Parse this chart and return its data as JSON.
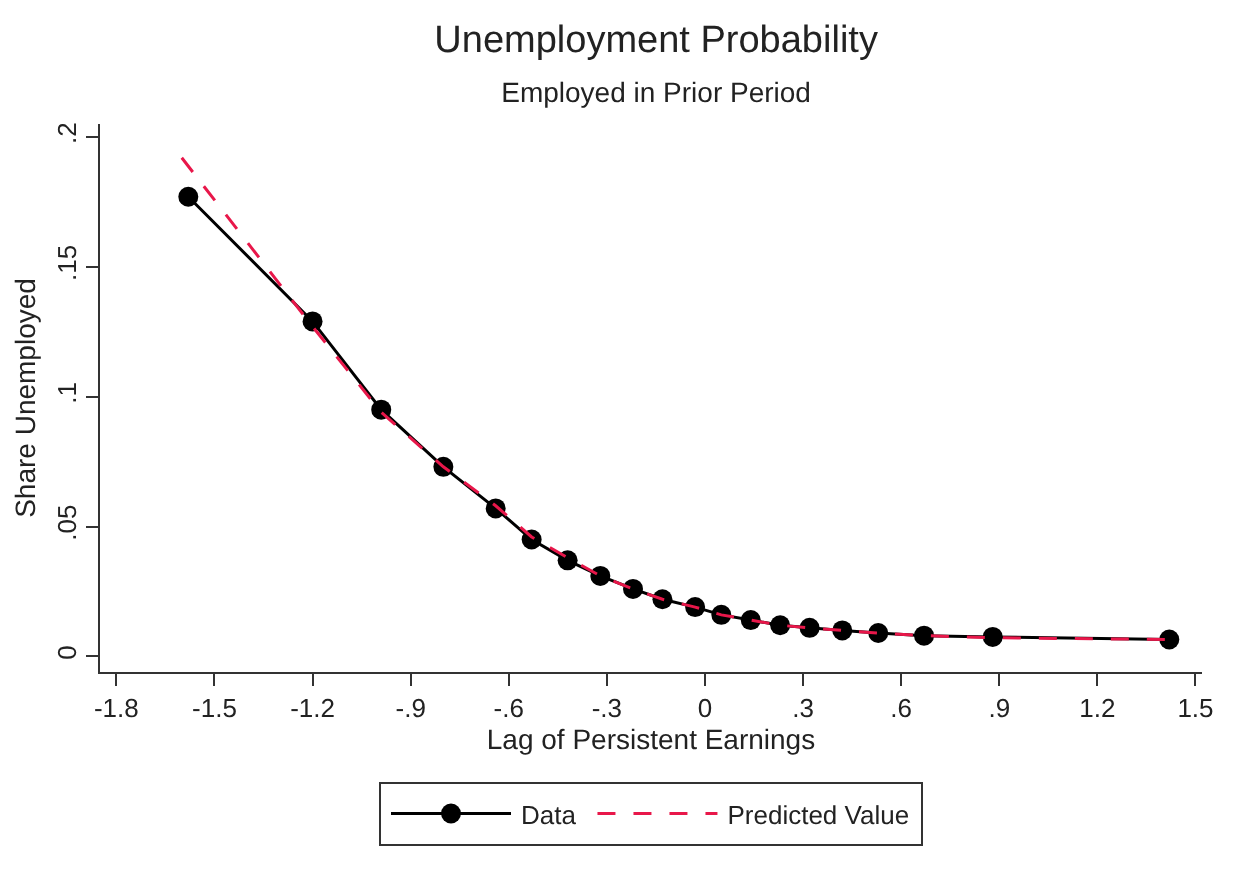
{
  "chart_data": {
    "type": "line",
    "title": "Unemployment Probability",
    "subtitle": "Employed in Prior Period",
    "xlabel": "Lag of Persistent Earnings",
    "ylabel": "Share Unemployed",
    "series": [
      {
        "name": "Data",
        "color": "#000000",
        "marker": "circle",
        "line_style": "solid",
        "x": [
          -1.58,
          -1.2,
          -0.99,
          -0.8,
          -0.64,
          -0.53,
          -0.42,
          -0.32,
          -0.22,
          -0.13,
          -0.03,
          0.05,
          0.14,
          0.23,
          0.32,
          0.42,
          0.53,
          0.67,
          0.88,
          1.42
        ],
        "values": [
          0.177,
          0.129,
          0.095,
          0.073,
          0.057,
          0.045,
          0.037,
          0.031,
          0.026,
          0.022,
          0.019,
          0.016,
          0.014,
          0.012,
          0.011,
          0.01,
          0.009,
          0.008,
          0.0075,
          0.0065
        ]
      },
      {
        "name": "Predicted Value",
        "color": "#e8174a",
        "marker": "none",
        "line_style": "dashed",
        "x": [
          -1.6,
          -1.2,
          -0.99,
          -0.8,
          -0.64,
          -0.53,
          -0.42,
          -0.32,
          -0.22,
          -0.13,
          -0.03,
          0.05,
          0.14,
          0.23,
          0.32,
          0.42,
          0.53,
          0.67,
          0.88,
          1.42
        ],
        "values": [
          0.192,
          0.127,
          0.094,
          0.073,
          0.058,
          0.046,
          0.038,
          0.031,
          0.026,
          0.022,
          0.019,
          0.016,
          0.014,
          0.012,
          0.011,
          0.01,
          0.009,
          0.008,
          0.0072,
          0.0065
        ]
      }
    ],
    "xlim": [
      -1.85,
      1.52
    ],
    "xticks": [
      {
        "value": -1.8,
        "label": "-1.8"
      },
      {
        "value": -1.5,
        "label": "-1.5"
      },
      {
        "value": -1.2,
        "label": "-1.2"
      },
      {
        "value": -0.9,
        "label": "-.9"
      },
      {
        "value": -0.6,
        "label": "-.6"
      },
      {
        "value": -0.3,
        "label": "-.3"
      },
      0,
      {
        "value": 0.3,
        "label": ".3"
      },
      {
        "value": 0.6,
        "label": ".6"
      },
      {
        "value": 0.9,
        "label": ".9"
      },
      {
        "value": 1.2,
        "label": "1.2"
      },
      {
        "value": 1.5,
        "label": "1.5"
      }
    ],
    "ylim": [
      -0.006,
      0.205
    ],
    "yticks": [
      0,
      {
        "value": 0.05,
        "label": ".05"
      },
      {
        "value": 0.1,
        "label": ".1"
      },
      {
        "value": 0.15,
        "label": ".15"
      },
      {
        "value": 0.2,
        "label": ".2"
      }
    ],
    "legend": "bottom"
  }
}
